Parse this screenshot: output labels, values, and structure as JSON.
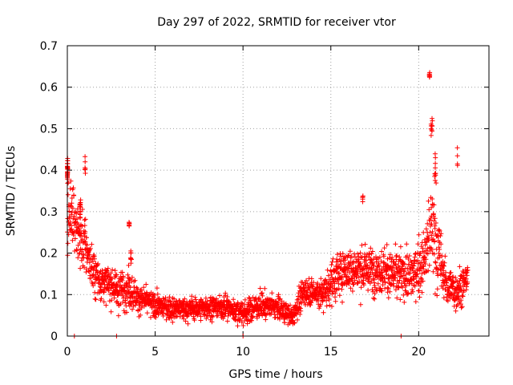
{
  "chart_data": {
    "type": "scatter",
    "title": "Day 297 of 2022, SRMTID for receiver vtor",
    "xlabel": "GPS time / hours",
    "ylabel": "SRMTID / TECUs",
    "xlim": [
      0,
      24
    ],
    "ylim": [
      0,
      0.7
    ],
    "xticks": [
      0,
      5,
      10,
      15,
      20
    ],
    "yticks": [
      0,
      0.1,
      0.2,
      0.3,
      0.4,
      0.5,
      0.6,
      0.7
    ],
    "grid": true,
    "marker": "+",
    "color": "#ff0000",
    "envelope": [
      [
        0.0,
        0.3,
        0.09
      ],
      [
        0.3,
        0.3,
        0.09
      ],
      [
        0.6,
        0.24,
        0.07
      ],
      [
        1.0,
        0.22,
        0.07
      ],
      [
        1.5,
        0.15,
        0.05
      ],
      [
        2.0,
        0.13,
        0.04
      ],
      [
        2.5,
        0.12,
        0.04
      ],
      [
        3.0,
        0.11,
        0.04
      ],
      [
        3.5,
        0.12,
        0.05
      ],
      [
        4.0,
        0.09,
        0.03
      ],
      [
        5.0,
        0.075,
        0.025
      ],
      [
        6.0,
        0.065,
        0.025
      ],
      [
        7.0,
        0.065,
        0.025
      ],
      [
        8.0,
        0.07,
        0.025
      ],
      [
        9.0,
        0.07,
        0.025
      ],
      [
        10.0,
        0.055,
        0.025
      ],
      [
        11.0,
        0.075,
        0.03
      ],
      [
        12.0,
        0.07,
        0.025
      ],
      [
        12.8,
        0.045,
        0.02
      ],
      [
        13.5,
        0.11,
        0.03
      ],
      [
        14.5,
        0.1,
        0.035
      ],
      [
        15.0,
        0.13,
        0.05
      ],
      [
        15.8,
        0.16,
        0.05
      ],
      [
        16.5,
        0.16,
        0.05
      ],
      [
        17.5,
        0.16,
        0.05
      ],
      [
        18.5,
        0.15,
        0.05
      ],
      [
        19.5,
        0.14,
        0.05
      ],
      [
        20.3,
        0.18,
        0.06
      ],
      [
        20.7,
        0.26,
        0.11
      ],
      [
        21.0,
        0.22,
        0.1
      ],
      [
        21.5,
        0.13,
        0.05
      ],
      [
        22.0,
        0.11,
        0.05
      ],
      [
        22.5,
        0.12,
        0.04
      ],
      [
        22.8,
        0.15,
        0.03
      ]
    ],
    "clusters": [
      [
        0.0,
        0.4,
        0.02,
        0.04,
        25
      ],
      [
        0.7,
        0.31,
        0.06,
        0.03,
        14
      ],
      [
        1.0,
        0.41,
        0.03,
        0.02,
        6
      ],
      [
        3.5,
        0.27,
        0.03,
        0.01,
        6
      ],
      [
        3.6,
        0.19,
        0.05,
        0.02,
        8
      ],
      [
        16.8,
        0.33,
        0.03,
        0.02,
        5
      ],
      [
        20.6,
        0.63,
        0.03,
        0.015,
        8
      ],
      [
        20.7,
        0.5,
        0.08,
        0.04,
        10
      ],
      [
        20.9,
        0.4,
        0.1,
        0.05,
        10
      ],
      [
        22.2,
        0.43,
        0.03,
        0.03,
        4
      ]
    ],
    "zero_markers": [
      0.4,
      2.8,
      10.0,
      19.0
    ],
    "point_count": 2400
  }
}
